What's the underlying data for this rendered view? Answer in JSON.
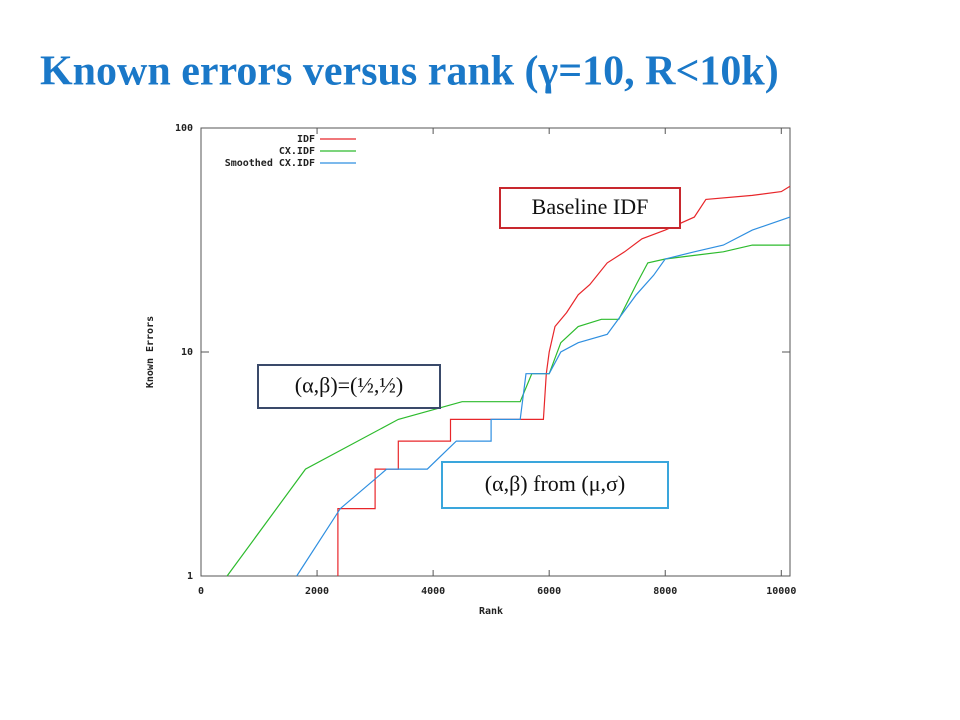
{
  "chart_data": {
    "type": "line",
    "title": "Known errors versus rank (γ=10, R<10k)",
    "x_label": "Rank",
    "y_label": "Known Errors",
    "xlim": [
      0,
      10150
    ],
    "xticks": [
      0,
      2000,
      4000,
      6000,
      8000,
      10000
    ],
    "ylim": [
      1,
      100
    ],
    "yticks": [
      1,
      10,
      100
    ],
    "y_scale": "log",
    "legend": "top-left",
    "series": [
      {
        "name": "IDF",
        "color": "#e8262a",
        "x": [
          2360,
          2360,
          3000,
          3000,
          3400,
          3400,
          4300,
          4300,
          5900,
          5950,
          6000,
          6100,
          6300,
          6500,
          6700,
          7000,
          7300,
          7600,
          8000,
          8500,
          8700,
          9500,
          10000,
          10150
        ],
        "values": [
          1,
          2,
          2,
          3,
          3,
          4,
          4,
          5,
          5,
          8,
          10,
          13,
          15,
          18,
          20,
          25,
          28,
          32,
          35,
          40,
          48,
          50,
          52,
          55
        ]
      },
      {
        "name": "CX.IDF",
        "color": "#2dbb2d",
        "x": [
          450,
          1800,
          3400,
          4500,
          5500,
          5700,
          6000,
          6200,
          6500,
          6900,
          7200,
          7500,
          7700,
          8000,
          8500,
          9000,
          9500,
          10150
        ],
        "values": [
          1,
          3,
          5,
          6,
          6,
          8,
          8,
          11,
          13,
          14,
          14,
          20,
          25,
          26,
          27,
          28,
          30,
          30
        ]
      },
      {
        "name": "Smoothed CX.IDF",
        "color": "#2f8fe0",
        "x": [
          1650,
          2400,
          3200,
          3900,
          4400,
          5000,
          5000,
          5500,
          5600,
          6000,
          6200,
          6500,
          7000,
          7500,
          7800,
          8000,
          8500,
          9000,
          9500,
          10150
        ],
        "values": [
          1,
          2,
          3,
          3,
          4,
          4,
          5,
          5,
          8,
          8,
          10,
          11,
          12,
          18,
          22,
          26,
          28,
          30,
          35,
          40
        ]
      }
    ],
    "annotations": [
      {
        "text": "Baseline IDF",
        "color": "#c8282e"
      },
      {
        "text": "(α,β)=(½,½)",
        "color": "#3a4a6a"
      },
      {
        "text": "(α,β) from (μ,σ)",
        "color": "#3aa6dc"
      }
    ]
  }
}
